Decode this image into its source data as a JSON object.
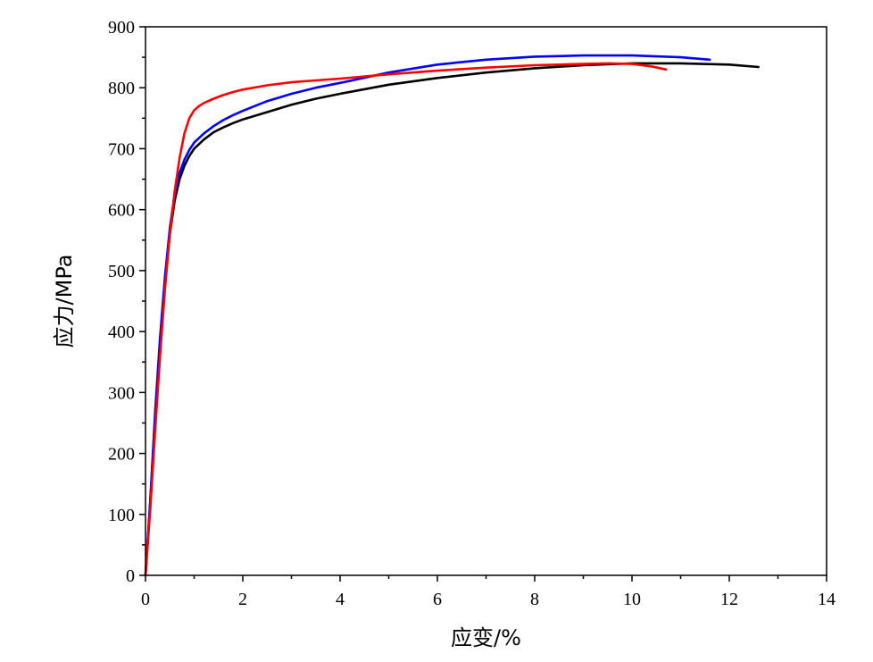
{
  "chart_data": {
    "type": "line",
    "xlabel": "应变/%",
    "ylabel": "应力/MPa",
    "xlim": [
      0,
      14
    ],
    "ylim": [
      0,
      900
    ],
    "x_ticks": [
      0,
      2,
      4,
      6,
      8,
      10,
      12,
      14
    ],
    "y_ticks": [
      0,
      100,
      200,
      300,
      400,
      500,
      600,
      700,
      800,
      900
    ],
    "grid": false,
    "legend": "none",
    "series": [
      {
        "color": "#000000",
        "x": [
          0,
          0.1,
          0.2,
          0.3,
          0.4,
          0.5,
          0.6,
          0.7,
          0.8,
          0.9,
          1.0,
          1.2,
          1.4,
          1.6,
          1.8,
          2.0,
          2.5,
          3.0,
          3.5,
          4.0,
          5.0,
          6.0,
          7.0,
          8.0,
          9.0,
          10.0,
          11.0,
          12.0,
          12.6
        ],
        "y": [
          0,
          120,
          260,
          380,
          480,
          560,
          615,
          650,
          672,
          688,
          700,
          715,
          727,
          735,
          742,
          748,
          760,
          772,
          782,
          790,
          805,
          816,
          825,
          832,
          837,
          840,
          840,
          838,
          834
        ]
      },
      {
        "color": "#0000ff",
        "x": [
          0,
          0.1,
          0.2,
          0.3,
          0.4,
          0.5,
          0.6,
          0.7,
          0.8,
          0.9,
          1.0,
          1.2,
          1.4,
          1.6,
          1.8,
          2.0,
          2.5,
          3.0,
          3.5,
          4.0,
          5.0,
          6.0,
          7.0,
          8.0,
          9.0,
          10.0,
          11.0,
          11.6
        ],
        "y": [
          0,
          125,
          270,
          390,
          490,
          570,
          625,
          660,
          682,
          698,
          710,
          725,
          737,
          747,
          755,
          762,
          778,
          790,
          800,
          808,
          825,
          838,
          846,
          851,
          853,
          853,
          850,
          846
        ]
      },
      {
        "color": "#ff0000",
        "x": [
          0,
          0.1,
          0.2,
          0.3,
          0.4,
          0.5,
          0.6,
          0.7,
          0.8,
          0.9,
          1.0,
          1.1,
          1.2,
          1.4,
          1.6,
          1.8,
          2.0,
          2.5,
          3.0,
          3.5,
          4.0,
          5.0,
          6.0,
          7.0,
          8.0,
          9.0,
          9.5,
          10.0,
          10.4,
          10.7
        ],
        "y": [
          0,
          110,
          240,
          360,
          470,
          560,
          630,
          685,
          725,
          750,
          763,
          770,
          775,
          782,
          788,
          793,
          797,
          804,
          809,
          812,
          815,
          822,
          828,
          833,
          837,
          839,
          840,
          839,
          835,
          830
        ]
      }
    ]
  }
}
